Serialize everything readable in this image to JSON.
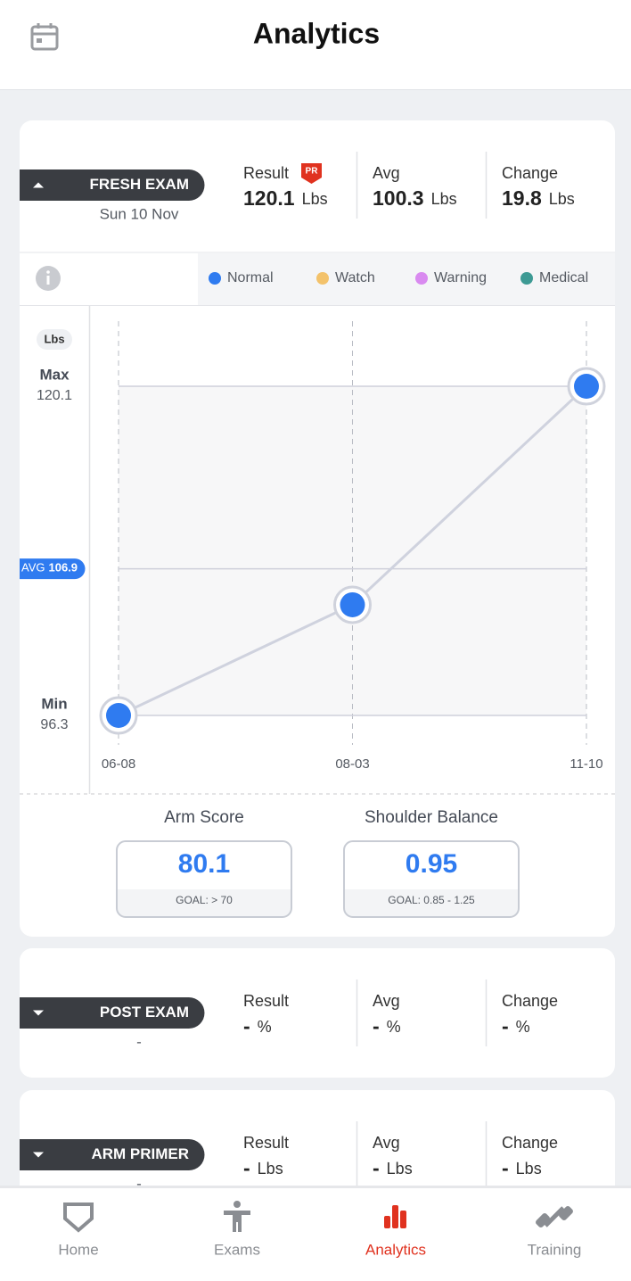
{
  "header": {
    "title": "Analytics"
  },
  "cards": [
    {
      "exam": "FRESH EXAM",
      "date": "Sun 10 Nov",
      "expanded": true,
      "stats": [
        {
          "label": "Result",
          "badge": "PR",
          "value": 120.1,
          "unit": "Lbs"
        },
        {
          "label": "Avg",
          "value": 100.3,
          "unit": "Lbs"
        },
        {
          "label": "Change",
          "value": 19.8,
          "unit": "Lbs"
        }
      ]
    },
    {
      "exam": "POST EXAM",
      "date": "-",
      "expanded": false,
      "stats": [
        {
          "label": "Result",
          "value": "-",
          "unit": "%"
        },
        {
          "label": "Avg",
          "value": "-",
          "unit": "%"
        },
        {
          "label": "Change",
          "value": "-",
          "unit": "%"
        }
      ]
    },
    {
      "exam": "ARM PRIMER",
      "date": "-",
      "expanded": false,
      "stats": [
        {
          "label": "Result",
          "value": "-",
          "unit": "Lbs"
        },
        {
          "label": "Avg",
          "value": "-",
          "unit": "Lbs"
        },
        {
          "label": "Change",
          "value": "-",
          "unit": "Lbs"
        }
      ]
    }
  ],
  "chart_data": {
    "type": "line",
    "unit": "Lbs",
    "legend": [
      {
        "name": "Normal",
        "color": "#2f7bf0"
      },
      {
        "name": "Watch",
        "color": "#f3c26b"
      },
      {
        "name": "Warning",
        "color": "#d98af0"
      },
      {
        "name": "Medical",
        "color": "#3d9a94"
      }
    ],
    "categories": [
      "06-08",
      "08-03",
      "11-10"
    ],
    "values": [
      96.3,
      104.3,
      120.1
    ],
    "max": {
      "label": "Max",
      "value": 120.1
    },
    "min": {
      "label": "Min",
      "value": 96.3
    },
    "avg": {
      "label": "AVG",
      "value": 106.9
    },
    "line_color": "#cfd2de"
  },
  "metrics": [
    {
      "label": "Arm Score",
      "value": 80.1,
      "goal": "GOAL: > 70"
    },
    {
      "label": "Shoulder Balance",
      "value": 0.95,
      "goal": "GOAL: 0.85 - 1.25"
    }
  ],
  "nav": [
    {
      "label": "Home",
      "active": false
    },
    {
      "label": "Exams",
      "active": false
    },
    {
      "label": "Analytics",
      "active": true
    },
    {
      "label": "Training",
      "active": false
    }
  ]
}
